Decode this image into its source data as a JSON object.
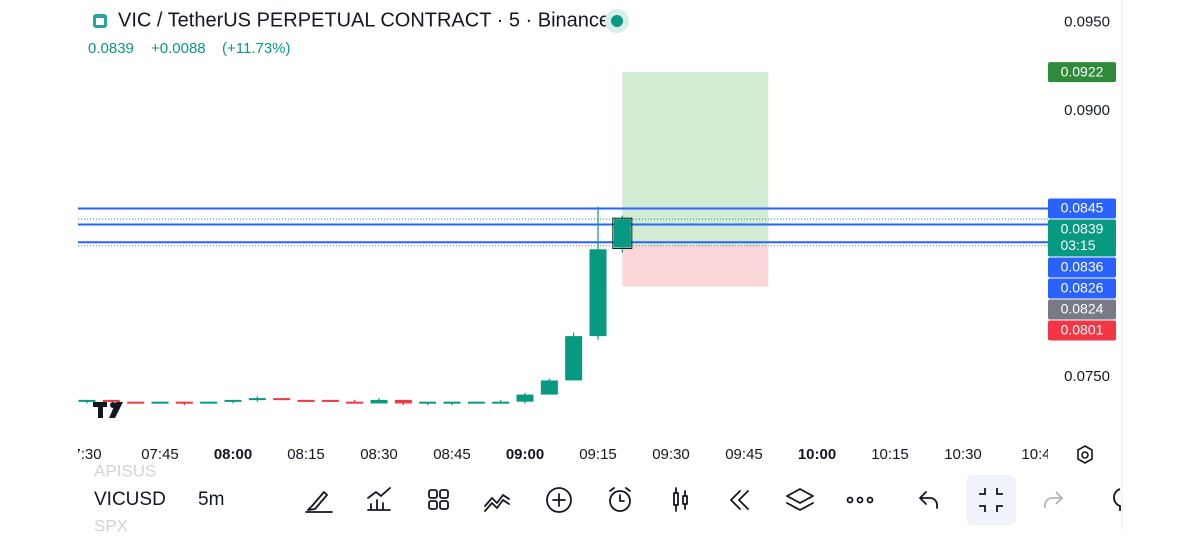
{
  "header": {
    "title": "VIC / TetherUS PERPETUAL CONTRACT · 5 · Binance",
    "price": "0.0839",
    "change": "+0.0088",
    "change_pct": "(+11.73%)"
  },
  "chart_data": {
    "type": "candlestick",
    "open": [
      0.0736,
      0.0737,
      0.0736,
      0.0735,
      0.0736,
      0.0735,
      0.0736,
      0.0737,
      0.0738,
      0.0737,
      0.0737,
      0.0736,
      0.0735,
      0.0737,
      0.0735,
      0.0735,
      0.0735,
      0.0735,
      0.0736,
      0.074,
      0.0748,
      0.0773,
      0.0823
    ],
    "high": [
      0.0737,
      0.0737,
      0.0736,
      0.0736,
      0.0736,
      0.0736,
      0.0737,
      0.0739,
      0.0738,
      0.0737,
      0.0737,
      0.0737,
      0.0738,
      0.0737,
      0.0736,
      0.0736,
      0.0736,
      0.0737,
      0.0741,
      0.0749,
      0.0775,
      0.0846,
      0.0841
    ],
    "low": [
      0.0735,
      0.0736,
      0.0735,
      0.0735,
      0.0734,
      0.0735,
      0.0735,
      0.0736,
      0.0737,
      0.0736,
      0.0736,
      0.0735,
      0.0735,
      0.0734,
      0.0734,
      0.0734,
      0.0735,
      0.0735,
      0.0735,
      0.074,
      0.0748,
      0.0771,
      0.082
    ],
    "close": [
      0.0737,
      0.0736,
      0.0735,
      0.0736,
      0.0735,
      0.0736,
      0.0737,
      0.0738,
      0.0737,
      0.0736,
      0.0736,
      0.0735,
      0.0737,
      0.0735,
      0.0736,
      0.0736,
      0.0736,
      0.0736,
      0.074,
      0.0748,
      0.0773,
      0.0822,
      0.0839
    ],
    "up_color": "#089981",
    "down_color": "#f23645",
    "ylim": [
      0.07234,
      0.09627
    ],
    "yticks": [
      {
        "value": 0.095,
        "label": "0.0950"
      },
      {
        "value": 0.09,
        "label": "0.0900"
      },
      {
        "value": 0.075,
        "label": "0.0750"
      }
    ],
    "xticks": [
      "7:30",
      "07:45",
      "08:00",
      "08:15",
      "08:30",
      "08:45",
      "09:00",
      "09:15",
      "09:30",
      "09:45",
      "10:00",
      "10:15",
      "10:30",
      "10:4"
    ],
    "xtick_bold": [
      false,
      false,
      true,
      false,
      false,
      false,
      true,
      false,
      false,
      false,
      true,
      false,
      false,
      false
    ],
    "price_labels": [
      {
        "value": 0.0922,
        "label": "0.0922",
        "color": "#2e8b3a",
        "line": "none"
      },
      {
        "value": 0.0845,
        "label": "0.0845",
        "color": "#2962ff",
        "line": "solid"
      },
      {
        "value": 0.0839,
        "label": "0.0839",
        "color": "#089981",
        "line": "dotted",
        "countdown": "03:15"
      },
      {
        "value": 0.0836,
        "label": "0.0836",
        "color": "#2962ff",
        "line": "solid"
      },
      {
        "value": 0.0826,
        "label": "0.0826",
        "color": "#2962ff",
        "line": "solid"
      },
      {
        "value": 0.0824,
        "label": "0.0824",
        "color": "#787b86",
        "line": "dotted"
      },
      {
        "value": 0.0801,
        "label": "0.0801",
        "color": "#f23645",
        "line": "none"
      }
    ]
  },
  "toolbar": {
    "symbol": "VICUSD",
    "interval": "5m",
    "prev_symbol": "APISUS",
    "next_symbol": "SPX"
  }
}
